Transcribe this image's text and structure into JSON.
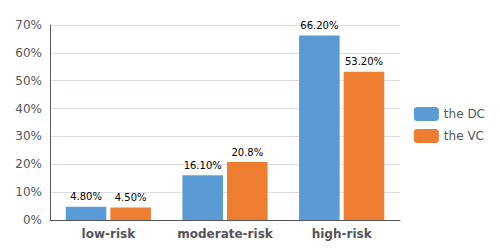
{
  "chart_data": {
    "type": "bar",
    "categories": [
      "low-risk",
      "moderate-risk",
      "high-risk"
    ],
    "series": [
      {
        "name": "the DC",
        "color": "#5B9BD5",
        "values": [
          4.8,
          16.1,
          66.2
        ],
        "value_labels": [
          "4.80%",
          "16.10%",
          "66.20%"
        ]
      },
      {
        "name": "the VC",
        "color": "#ED7D31",
        "values": [
          4.5,
          20.8,
          53.2
        ],
        "value_labels": [
          "4.50%",
          "20.8%",
          "53.20%"
        ]
      }
    ],
    "ylim": [
      0,
      70
    ],
    "yticks": [
      {
        "value": 0,
        "label": "0%"
      },
      {
        "value": 10,
        "label": "10%"
      },
      {
        "value": 20,
        "label": "20%"
      },
      {
        "value": 30,
        "label": "30%"
      },
      {
        "value": 40,
        "label": "40%"
      },
      {
        "value": 50,
        "label": "50%"
      },
      {
        "value": 60,
        "label": "60%"
      },
      {
        "value": 70,
        "label": "70%"
      }
    ],
    "grid": true,
    "legend": "right",
    "data_labels": true
  }
}
